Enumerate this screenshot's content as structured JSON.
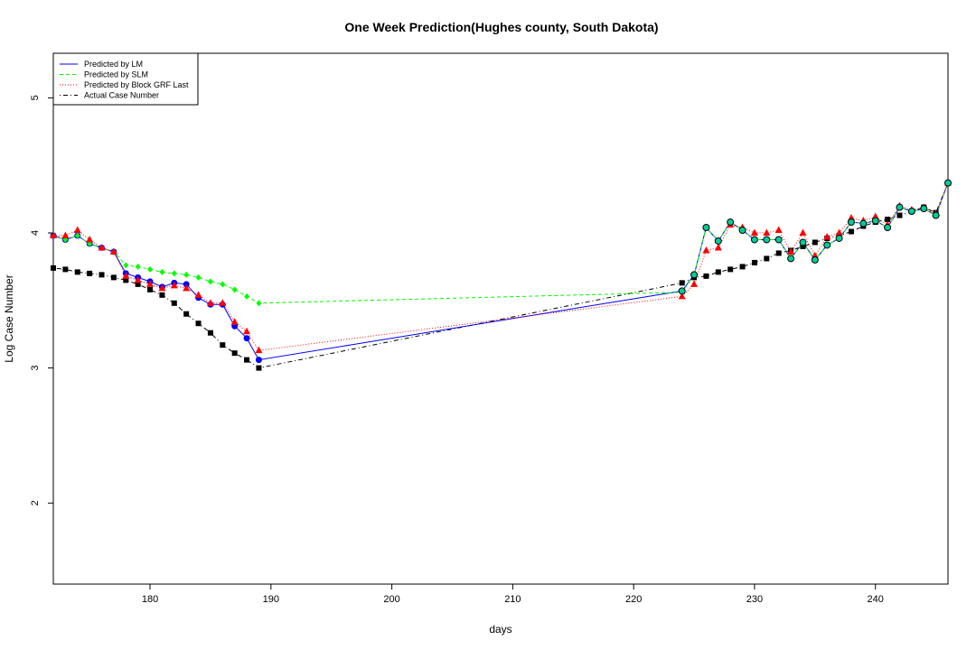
{
  "chart_data": {
    "type": "line",
    "title": "One Week Prediction(Hughes county, South Dakota)",
    "xlabel": "days",
    "ylabel": "Log Case Number",
    "xlim": [
      172,
      246
    ],
    "ylim": [
      1.4,
      5.33
    ],
    "xticks": [
      "180",
      "190",
      "200",
      "210",
      "220",
      "230",
      "240"
    ],
    "yticks": [
      "2",
      "3",
      "4",
      "5"
    ],
    "legend_position": "top-left",
    "x": [
      172,
      173,
      174,
      175,
      176,
      177,
      178,
      179,
      180,
      181,
      182,
      183,
      184,
      185,
      186,
      187,
      188,
      189,
      224,
      225,
      226,
      227,
      228,
      229,
      230,
      231,
      232,
      233,
      234,
      235,
      236,
      237,
      238,
      239,
      240,
      241,
      242,
      243,
      244,
      245,
      246
    ],
    "series": [
      {
        "name": "Predicted by LM",
        "color": "#0000ff",
        "line_style": "solid",
        "marker": "circle",
        "values": [
          3.98,
          3.95,
          3.98,
          3.92,
          3.89,
          3.86,
          3.7,
          3.67,
          3.64,
          3.6,
          3.63,
          3.62,
          3.52,
          3.47,
          3.47,
          3.31,
          3.22,
          3.06,
          3.57,
          3.69,
          4.04,
          3.94,
          4.08,
          4.02,
          3.95,
          3.95,
          3.95,
          3.81,
          3.93,
          3.8,
          3.91,
          3.96,
          4.08,
          4.07,
          4.09,
          4.04,
          4.19,
          4.16,
          4.18,
          4.13,
          4.37
        ]
      },
      {
        "name": "Predicted by SLM",
        "color": "#00ff00",
        "line_style": "dashed",
        "marker": "diamond",
        "values": [
          3.98,
          3.95,
          3.98,
          3.92,
          3.89,
          3.86,
          3.76,
          3.75,
          3.73,
          3.71,
          3.7,
          3.69,
          3.67,
          3.64,
          3.62,
          3.58,
          3.53,
          3.48,
          3.56,
          3.69,
          4.04,
          3.94,
          4.08,
          4.02,
          3.95,
          3.95,
          3.95,
          3.81,
          3.93,
          3.8,
          3.91,
          3.96,
          4.08,
          4.07,
          4.09,
          4.04,
          4.19,
          4.16,
          4.18,
          4.13,
          4.37
        ]
      },
      {
        "name": "Predicted by Block GRF Last",
        "color": "#ff0000",
        "line_style": "dotted",
        "marker": "triangle",
        "values": [
          3.98,
          3.98,
          4.02,
          3.95,
          3.89,
          3.86,
          3.68,
          3.65,
          3.62,
          3.59,
          3.61,
          3.59,
          3.54,
          3.48,
          3.48,
          3.34,
          3.27,
          3.13,
          3.53,
          3.62,
          3.87,
          3.89,
          4.06,
          4.04,
          4.0,
          4.0,
          4.02,
          3.86,
          4.0,
          3.83,
          3.97,
          4.0,
          4.11,
          4.09,
          4.12,
          4.06,
          4.2,
          4.17,
          4.19,
          4.14,
          4.37
        ]
      },
      {
        "name": "Actual Case Number",
        "color": "#000000",
        "line_style": "dotdash",
        "marker": "square",
        "values": [
          3.74,
          3.73,
          3.71,
          3.7,
          3.69,
          3.67,
          3.65,
          3.62,
          3.58,
          3.54,
          3.48,
          3.4,
          3.33,
          3.26,
          3.17,
          3.11,
          3.06,
          3.0,
          3.63,
          3.67,
          3.68,
          3.71,
          3.73,
          3.75,
          3.78,
          3.81,
          3.85,
          3.87,
          3.9,
          3.93,
          3.96,
          3.98,
          4.01,
          4.05,
          4.08,
          4.1,
          4.13,
          4.16,
          4.19,
          4.15,
          4.37
        ]
      }
    ]
  }
}
